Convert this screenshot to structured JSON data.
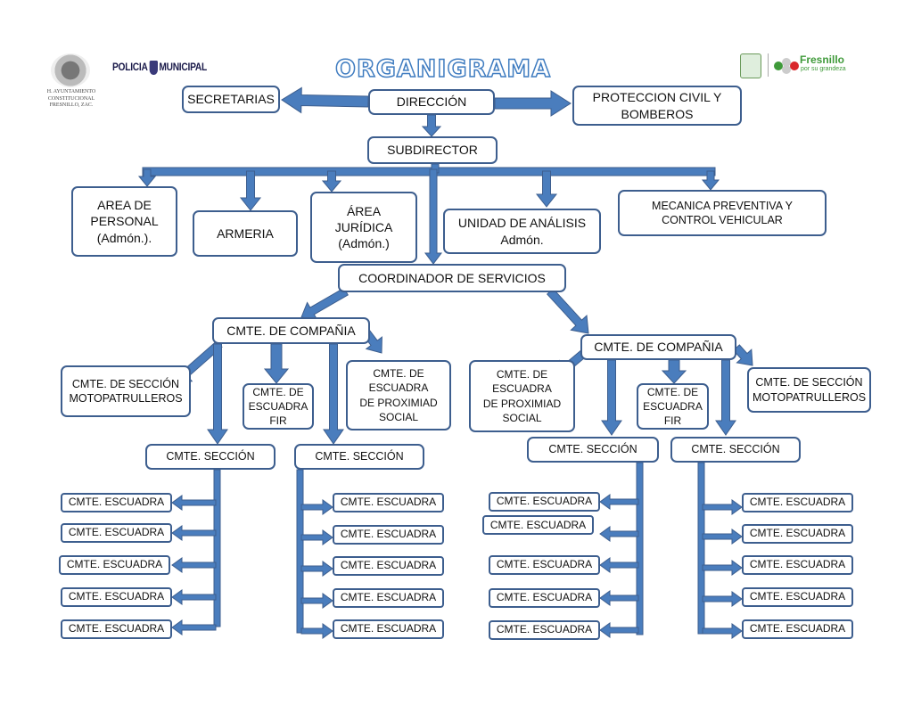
{
  "header": {
    "title": "ORGANIGRAMA",
    "left_logo_text": "H. AYUNTAMIENTO CONSTITUCIONAL FRESNILLO, ZAC.",
    "police_logo_left": "POLICIA",
    "police_logo_right": "MUNICIPAL",
    "right_logo_name": "Fresnillo",
    "right_logo_tagline": "por su grandeza"
  },
  "colors": {
    "arrow": "#4a7dbd",
    "box_border": "#3d5e8e"
  },
  "top": {
    "secretarias": "SECRETARIAS",
    "direccion": "DIRECCIÓN",
    "proteccion": "PROTECCION CIVIL Y\nBOMBEROS",
    "subdirector": "SUBDIRECTOR"
  },
  "areas": {
    "personal": "AREA DE\nPERSONAL\n(Admón.).",
    "armeria": "ARMERIA",
    "juridica": "ÁREA\nJURÍDICA\n(Admón.)",
    "analisis": "UNIDAD DE ANÁLISIS\nAdmón.",
    "mecanica": "MECANICA PREVENTIVA Y\nCONTROL VEHICULAR"
  },
  "coordinador": "COORDINADOR DE SERVICIOS",
  "left_company": {
    "title": "CMTE. DE COMPAÑIA",
    "moto": "CMTE. DE SECCIÓN\nMOTOPATRULLEROS",
    "fir": "CMTE. DE\nESCUADRA\nFIR",
    "proximidad": "CMTE. DE\nESCUADRA\nDE  PROXIMIAD\nSOCIAL",
    "seccion_1": "CMTE. SECCIÓN",
    "seccion_2": "CMTE. SECCIÓN",
    "escuadras_1": [
      "CMTE. ESCUADRA",
      "CMTE. ESCUADRA",
      "CMTE. ESCUADRA",
      "CMTE. ESCUADRA",
      "CMTE. ESCUADRA"
    ],
    "escuadras_2": [
      "CMTE. ESCUADRA",
      "CMTE. ESCUADRA",
      "CMTE. ESCUADRA",
      "CMTE. ESCUADRA",
      "CMTE. ESCUADRA"
    ]
  },
  "right_company": {
    "title": "CMTE. DE COMPAÑIA",
    "proximidad": "CMTE. DE\nESCUADRA\nDE  PROXIMIAD\nSOCIAL",
    "fir": "CMTE. DE\nESCUADRA\nFIR",
    "moto": "CMTE. DE SECCIÓN\nMOTOPATRULLEROS",
    "seccion_1": "CMTE. SECCIÓN",
    "seccion_2": "CMTE. SECCIÓN",
    "escuadras_1": [
      "CMTE. ESCUADRA",
      "CMTE. ESCUADRA",
      "CMTE. ESCUADRA",
      "CMTE. ESCUADRA",
      "CMTE. ESCUADRA"
    ],
    "escuadras_2": [
      "CMTE. ESCUADRA",
      "CMTE. ESCUADRA",
      "CMTE. ESCUADRA",
      "CMTE. ESCUADRA",
      "CMTE. ESCUADRA"
    ]
  }
}
